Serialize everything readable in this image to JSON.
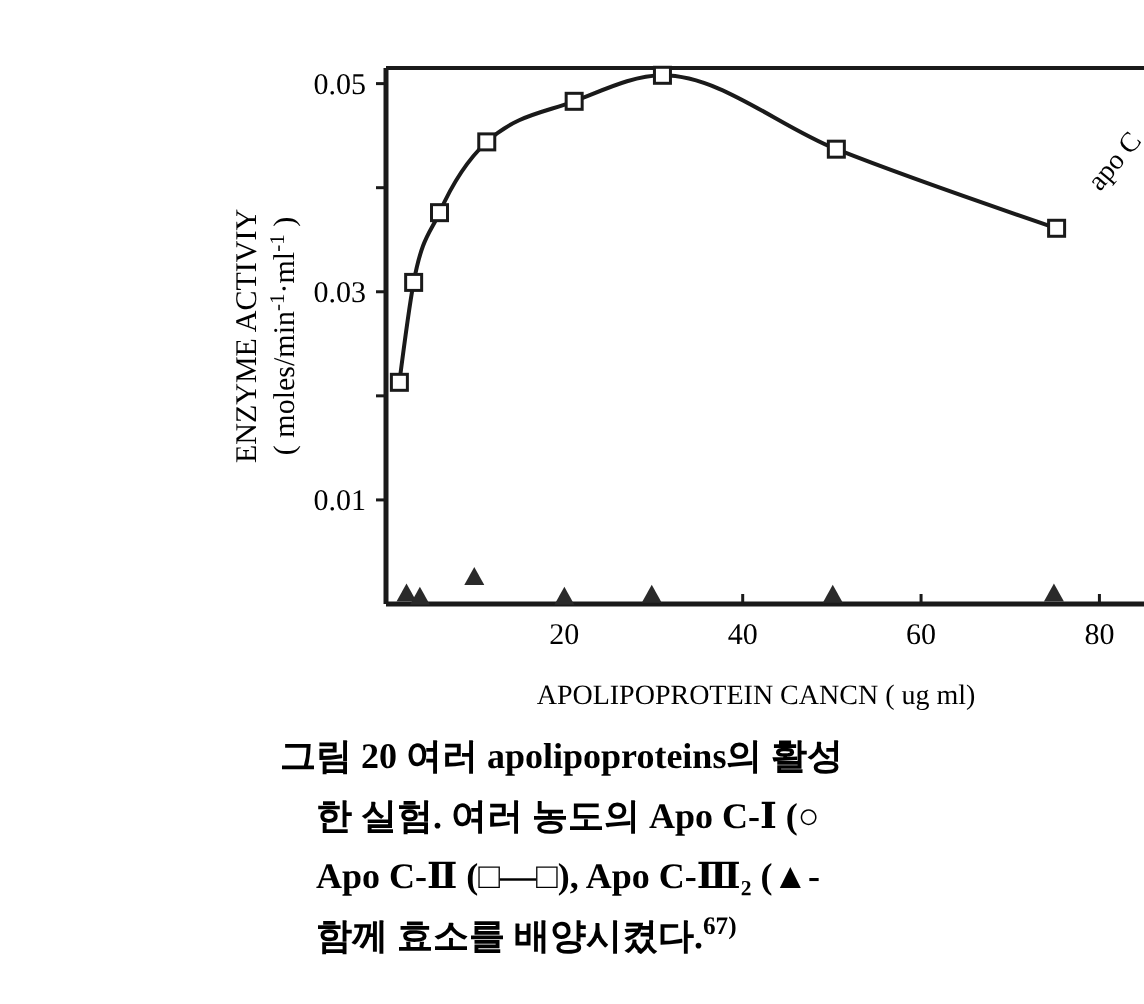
{
  "chart_data": {
    "type": "line",
    "xlabel": "APOLIPOPROTEIN CANCN ( ug ml)",
    "ylabel": "ENZYME ACTIVIY\n( moles/min$^{-1}$·ml$^{-1}$ )",
    "xlim": [
      0,
      85
    ],
    "ylim": [
      0,
      0.0515
    ],
    "xticks": [
      20,
      40,
      60,
      80
    ],
    "yticks": [
      0.01,
      {
        "value": 0.02,
        "label": null
      },
      0.03,
      {
        "value": 0.04,
        "label": null
      },
      0.05
    ],
    "series": [
      {
        "color": "#1a1a1a",
        "marker": "square",
        "x": [
          1.5,
          3.1,
          6.0,
          11.3,
          21.1,
          31.0,
          50.5,
          75.2
        ],
        "values": [
          0.0213,
          0.0309,
          0.0376,
          0.0444,
          0.0483,
          0.0508,
          0.0437,
          0.0361
        ]
      },
      {
        "type": "scatter",
        "color": "#2a2a2a",
        "marker": "triangle",
        "x": [
          2.3,
          3.8,
          9.9,
          20,
          29.8,
          50.1,
          74.9
        ],
        "values": [
          0.001,
          0.0007,
          0.0026,
          0.0007,
          0.0009,
          0.0009,
          0.001
        ]
      }
    ],
    "annotations": [
      "apo C",
      "그림 20  여러  apolipoproteins의 활성",
      "한 실험. 여러 농도의 Apo C-Ⅰ (○",
      "Apo C-Ⅱ (□—□),  Apo C-Ⅲ₂ (▲-",
      "함께 효소를 배양시켰다.$^{67)}$"
    ]
  }
}
